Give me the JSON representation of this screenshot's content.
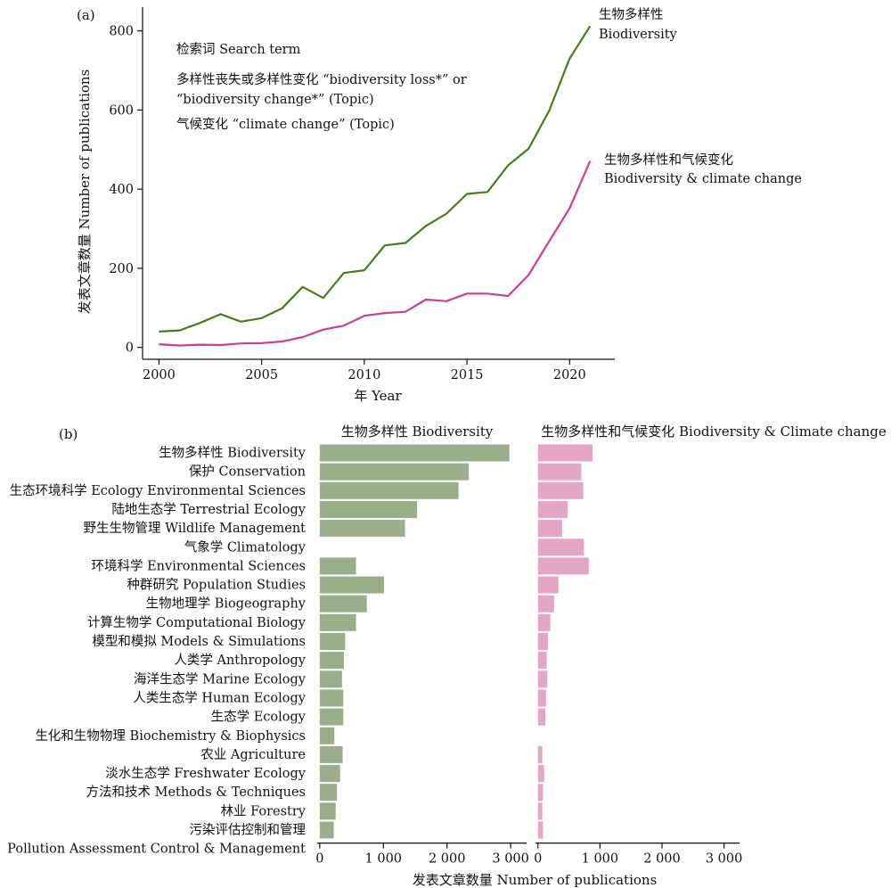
{
  "chart_data": [
    {
      "type": "line",
      "panel_label": "(a)",
      "xlabel": "年 Year",
      "ylabel": "发表文章数量 Number of publications",
      "xlim": [
        1999.2,
        2022.2
      ],
      "ylim": [
        -30,
        860
      ],
      "xticks": [
        2000,
        2005,
        2010,
        2015,
        2020
      ],
      "yticks": [
        0,
        200,
        400,
        600,
        800
      ],
      "x": [
        2000,
        2001,
        2002,
        2003,
        2004,
        2005,
        2006,
        2007,
        2008,
        2009,
        2010,
        2011,
        2012,
        2013,
        2014,
        2015,
        2016,
        2017,
        2018,
        2019,
        2020,
        2021
      ],
      "series": [
        {
          "name": "生物多样性 Biodiversity",
          "name_lines": [
            "生物多样性",
            "Biodiversity"
          ],
          "color": "#4a7a1c",
          "values": [
            40,
            43,
            62,
            84,
            65,
            74,
            99,
            153,
            125,
            188,
            195,
            258,
            264,
            307,
            338,
            388,
            393,
            460,
            502,
            598,
            730,
            812
          ]
        },
        {
          "name": "生物多样性和气候变化 Biodiversity & climate change",
          "name_lines": [
            "生物多样性和气候变化",
            "Biodiversity & climate change"
          ],
          "color": "#cc3f8e",
          "values": [
            8,
            5,
            7,
            6,
            10,
            11,
            15,
            26,
            45,
            55,
            80,
            87,
            90,
            121,
            117,
            136,
            136,
            130,
            183,
            268,
            352,
            471
          ]
        }
      ],
      "annotation_lines": [
        "检索词 Search term",
        "多样性丧失或多样性变化 “biodiversity loss*” or",
        "“biodiversity change*” (Topic)",
        "气候变化 “climate change” (Topic)"
      ]
    },
    {
      "type": "bar",
      "orientation": "horizontal",
      "panel_label": "(b)",
      "xlabel": "发表文章数量 Number of publications",
      "xlim": [
        -40,
        3250
      ],
      "xticks": [
        0,
        1000,
        2000,
        3000
      ],
      "xtick_labels": [
        "0",
        "1 000",
        "2 000",
        "3 000"
      ],
      "category_lines": [
        "生物多样性 Biodiversity",
        "保护 Conservation",
        "生态环境科学 Ecology Environmental Sciences",
        "陆地生态学 Terrestrial Ecology",
        "野生生物管理 Wildlife Management",
        "气象学 Climatology",
        "环境科学 Environmental Sciences",
        "种群研究 Population Studies",
        "生物地理学 Biogeography",
        "计算生物学 Computational Biology",
        "模型和模拟 Models & Simulations",
        "人类学 Anthropology",
        "海洋生态学 Marine Ecology",
        "人类生态学 Human Ecology",
        "生态学 Ecology",
        "生化和生物物理 Biochemistry & Biophysics",
        "农业 Agriculture",
        "淡水生态学 Freshwater Ecology",
        "方法和技术 Methods & Techniques",
        "林业 Forestry",
        "污染评估控制和管理",
        "Pollution Assessment Control & Management"
      ],
      "categories": [
        "生物多样性 Biodiversity",
        "保护 Conservation",
        "生态环境科学 Ecology Environmental Sciences",
        "陆地生态学 Terrestrial Ecology",
        "野生生物管理 Wildlife Management",
        "气象学 Climatology",
        "环境科学 Environmental Sciences",
        "种群研究 Population Studies",
        "生物地理学 Biogeography",
        "计算生物学 Computational Biology",
        "模型和模拟 Models & Simulations",
        "人类学 Anthropology",
        "海洋生态学 Marine Ecology",
        "人类生态学 Human Ecology",
        "生态学 Ecology",
        "生化和生物物理 Biochemistry & Biophysics",
        "农业 Agriculture",
        "淡水生态学 Freshwater Ecology",
        "方法和技术 Methods & Techniques",
        "林业 Forestry",
        "污染评估控制和管理 Pollution Assessment Control & Management"
      ],
      "series": [
        {
          "name": "生物多样性 Biodiversity",
          "color": "#9aae8a",
          "values": [
            2980,
            2340,
            2180,
            1530,
            1340,
            0,
            570,
            1010,
            740,
            570,
            400,
            380,
            350,
            370,
            370,
            230,
            360,
            320,
            270,
            250,
            220
          ]
        },
        {
          "name": "生物多样性和气候变化 Biodiversity & Climate change",
          "color": "#e4a6c4",
          "values": [
            880,
            700,
            730,
            480,
            390,
            740,
            820,
            330,
            260,
            200,
            160,
            140,
            150,
            130,
            120,
            0,
            70,
            100,
            80,
            70,
            80
          ]
        }
      ]
    }
  ]
}
